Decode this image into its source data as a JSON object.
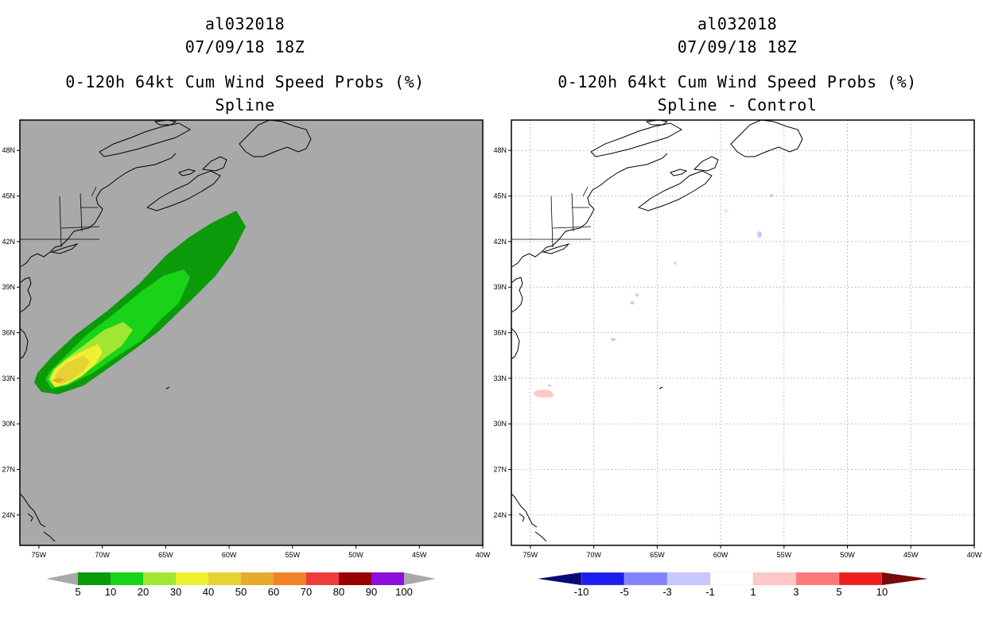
{
  "left_panel": {
    "storm_id": "al032018",
    "datetime": "07/09/18 18Z",
    "product": "0-120h 64kt Cum Wind Speed Probs (%)",
    "subtitle": "Spline",
    "background_color": "#a9a9a9",
    "colorbar": {
      "labels": [
        "5",
        "10",
        "20",
        "30",
        "40",
        "50",
        "60",
        "70",
        "80",
        "90",
        "100"
      ],
      "colors": [
        "#0a9a0a",
        "#19d319",
        "#a0e632",
        "#f0f032",
        "#e6d232",
        "#e6aa2d",
        "#f08228",
        "#f03c3c",
        "#960000",
        "#8c0fdc"
      ],
      "end_color": "#a9a9a9"
    }
  },
  "right_panel": {
    "storm_id": "al032018",
    "datetime": "07/09/18 18Z",
    "product": "0-120h 64kt Cum Wind Speed Probs (%)",
    "subtitle": "Spline - Control",
    "background_color": "#ffffff",
    "colorbar": {
      "labels": [
        "-10",
        "-5",
        "-3",
        "-1",
        "1",
        "3",
        "5",
        "10"
      ],
      "colors": [
        "#0000c8",
        "#1e1ef0",
        "#8282ff",
        "#c8c8ff",
        "#ffffff",
        "#ffc8c8",
        "#ff7878",
        "#f01e1e",
        "#e60000",
        "#a00000"
      ],
      "left_end": "#0a0a78",
      "right_end": "#780a0a"
    }
  },
  "axes": {
    "lat_labels": [
      "48N",
      "45N",
      "42N",
      "39N",
      "36N",
      "33N",
      "30N",
      "27N",
      "24N"
    ],
    "lat_values": [
      48,
      45,
      42,
      39,
      36,
      33,
      30,
      27,
      24
    ],
    "lon_labels": [
      "75W",
      "70W",
      "65W",
      "60W",
      "55W",
      "50W",
      "45W",
      "40W"
    ],
    "lon_values": [
      -75,
      -70,
      -65,
      -60,
      -55,
      -50,
      -45,
      -40
    ],
    "lon_range": [
      -76.5,
      -40
    ],
    "lat_range": [
      22,
      50
    ]
  }
}
